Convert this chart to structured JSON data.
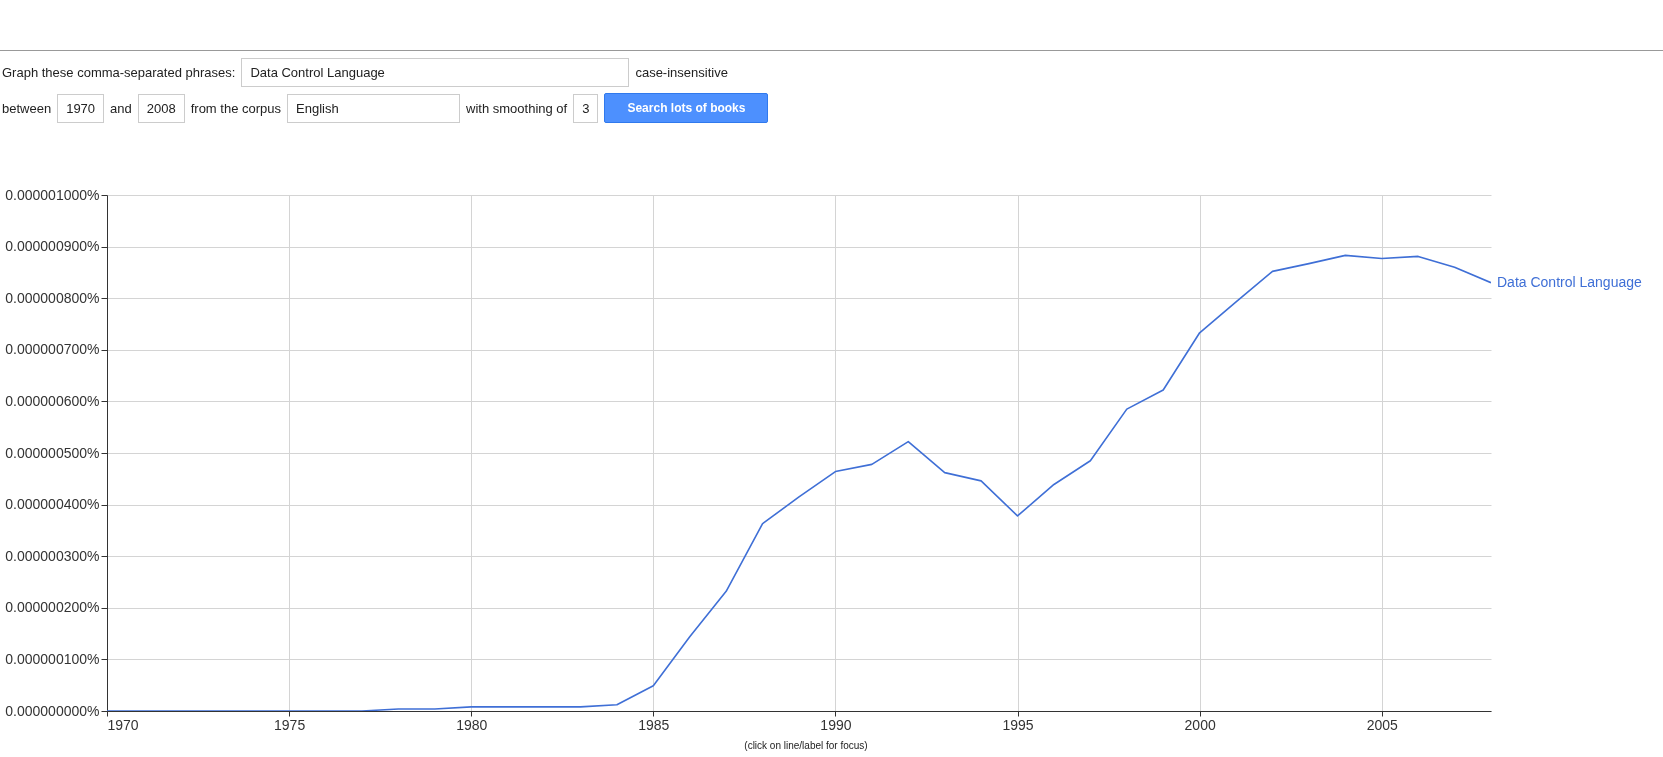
{
  "chart_data": {
    "type": "line",
    "annotations": [
      "Graph these comma-separated phrases:",
      "Data Control Language",
      "case-insensitive",
      "between",
      "1970",
      "and",
      "2008",
      "from the corpus",
      "English",
      "with smoothing of",
      "3",
      "Search lots of books",
      "(click on line/label for focus)"
    ],
    "x": [
      1970,
      1971,
      1972,
      1973,
      1974,
      1975,
      1976,
      1977,
      1978,
      1979,
      1980,
      1981,
      1982,
      1983,
      1984,
      1985,
      1986,
      1987,
      1988,
      1989,
      1990,
      1991,
      1992,
      1993,
      1994,
      1995,
      1996,
      1997,
      1998,
      1999,
      2000,
      2001,
      2002,
      2003,
      2004,
      2005,
      2006,
      2007,
      2008
    ],
    "series": [
      {
        "name": "Data Control Language",
        "color": "#3f6fd6",
        "values": [
          0,
          0,
          0,
          0,
          0,
          0,
          0,
          0,
          4e-09,
          4e-09,
          8e-09,
          8e-09,
          8e-09,
          8e-09,
          1.2e-08,
          4.9e-08,
          1.44e-07,
          2.32e-07,
          3.63e-07,
          4.15e-07,
          4.64e-07,
          4.78e-07,
          5.22e-07,
          4.62e-07,
          4.46e-07,
          3.78e-07,
          4.39e-07,
          4.85e-07,
          5.85e-07,
          6.22e-07,
          7.33e-07,
          7.93e-07,
          8.52e-07,
          8.67e-07,
          8.83e-07,
          8.77e-07,
          8.81e-07,
          8.6e-07,
          8.3e-07
        ]
      }
    ],
    "xlim": [
      1970,
      2008
    ],
    "xticks": [
      1970,
      1975,
      1980,
      1985,
      1990,
      1995,
      2000,
      2005
    ],
    "ylim": [
      0,
      1e-06
    ],
    "yticks": [
      {
        "value": 0,
        "label": "0.000000000%"
      },
      {
        "value": 1e-07,
        "label": "0.000000100%"
      },
      {
        "value": 2e-07,
        "label": "0.000000200%"
      },
      {
        "value": 3e-07,
        "label": "0.000000300%"
      },
      {
        "value": 4e-07,
        "label": "0.000000400%"
      },
      {
        "value": 5e-07,
        "label": "0.000000500%"
      },
      {
        "value": 6e-07,
        "label": "0.000000600%"
      },
      {
        "value": 7e-07,
        "label": "0.000000700%"
      },
      {
        "value": 8e-07,
        "label": "0.000000800%"
      },
      {
        "value": 9e-07,
        "label": "0.000000900%"
      },
      {
        "value": 1e-06,
        "label": "0.000001000%"
      }
    ],
    "grid": true
  }
}
